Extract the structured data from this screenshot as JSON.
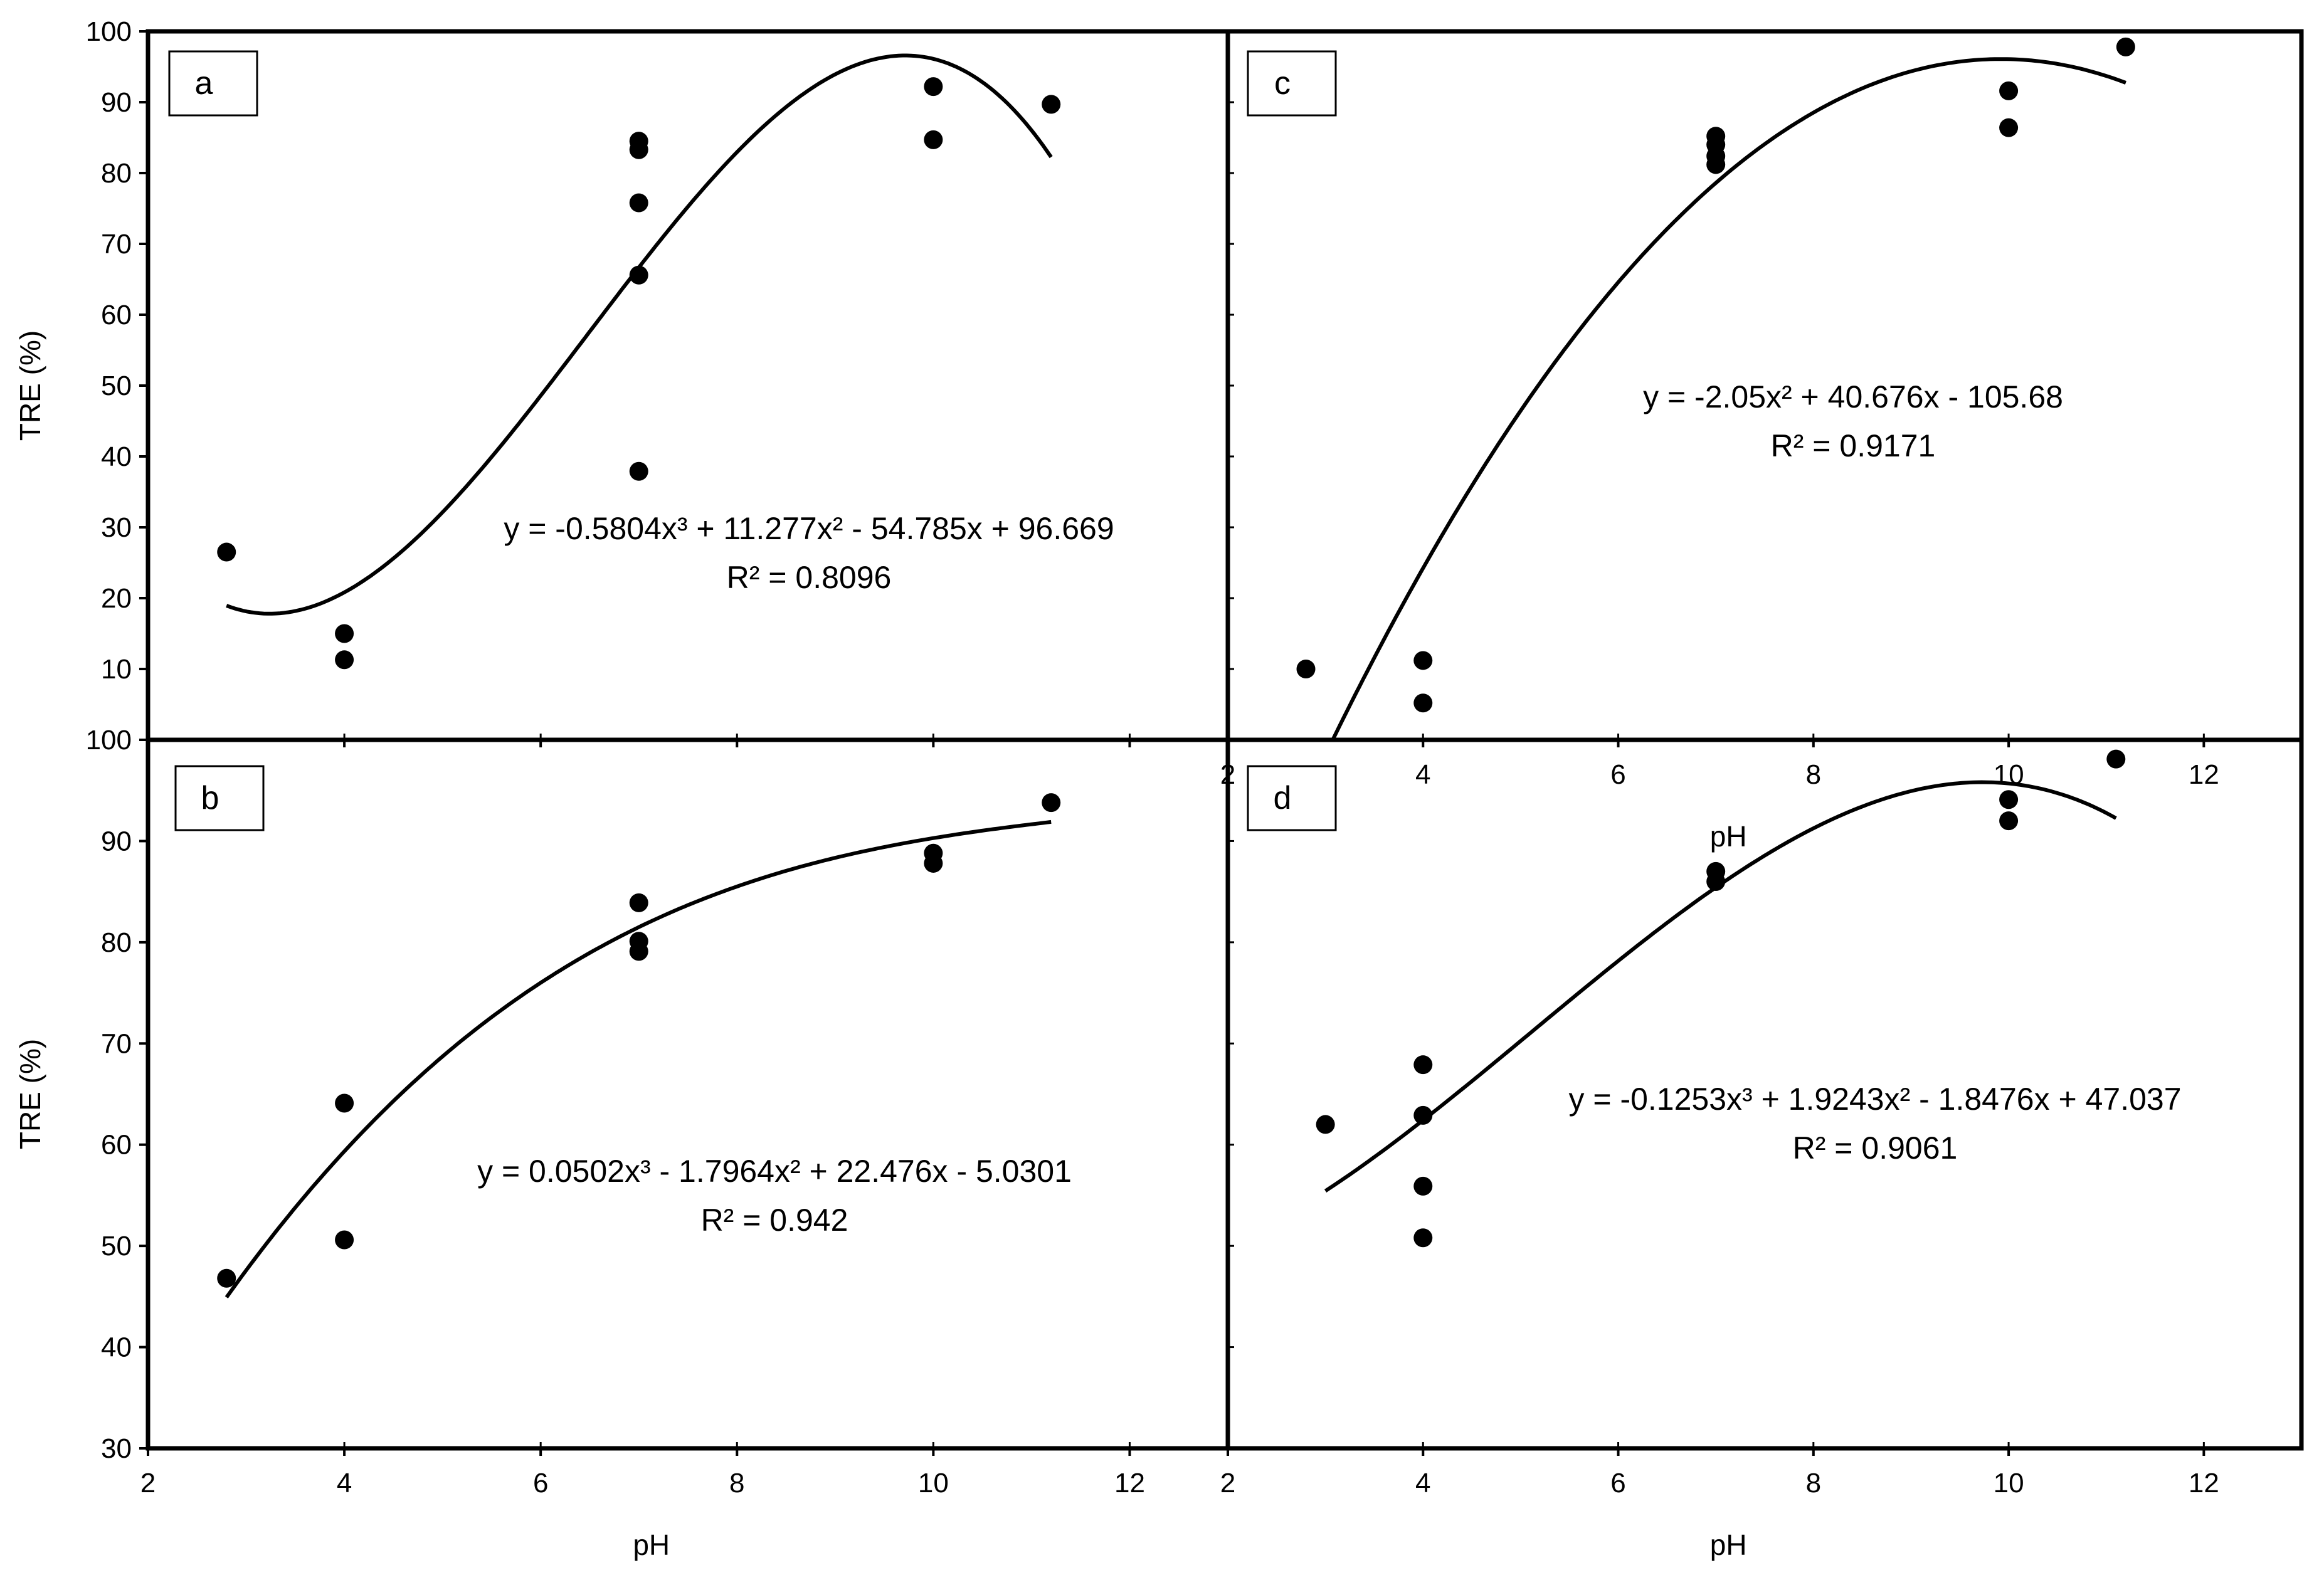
{
  "chart_data": [
    {
      "type": "scatter",
      "panel_label": "a",
      "xlabel": "",
      "ylabel": "TRE (%)",
      "xlim": [
        2,
        13
      ],
      "ylim": [
        0,
        100
      ],
      "xticks": [
        2,
        4,
        6,
        8,
        10,
        12
      ],
      "yticks": [
        10,
        20,
        30,
        40,
        50,
        60,
        70,
        80,
        90,
        100
      ],
      "points": [
        {
          "x": 2.8,
          "y": 26.5
        },
        {
          "x": 4,
          "y": 15
        },
        {
          "x": 4,
          "y": 11.3
        },
        {
          "x": 7,
          "y": 84.5
        },
        {
          "x": 7,
          "y": 83.3
        },
        {
          "x": 7,
          "y": 75.8
        },
        {
          "x": 7,
          "y": 65.6
        },
        {
          "x": 7,
          "y": 37.9
        },
        {
          "x": 10,
          "y": 92.2
        },
        {
          "x": 10,
          "y": 84.7
        },
        {
          "x": 11.2,
          "y": 89.7
        }
      ],
      "trendline": {
        "degree": 3,
        "coefficients": [
          96.669,
          -54.785,
          11.277,
          -0.5804
        ],
        "x_range": [
          2.8,
          11.2
        ]
      },
      "equation": "y = -0.5804x³ + 11.277x² - 54.785x + 96.669",
      "r_squared": "R² = 0.8096"
    },
    {
      "type": "scatter",
      "panel_label": "c",
      "xlabel": "pH",
      "ylabel": "",
      "xlim": [
        2,
        13
      ],
      "ylim": [
        0,
        100
      ],
      "xticks": [
        2,
        4,
        6,
        8,
        10,
        12
      ],
      "yticks": [],
      "points": [
        {
          "x": 2.8,
          "y": 10
        },
        {
          "x": 4,
          "y": 11.2
        },
        {
          "x": 4,
          "y": 5.2
        },
        {
          "x": 7,
          "y": 85.2
        },
        {
          "x": 7,
          "y": 84
        },
        {
          "x": 7,
          "y": 82.4
        },
        {
          "x": 7,
          "y": 81.2
        },
        {
          "x": 10,
          "y": 91.6
        },
        {
          "x": 10,
          "y": 86.4
        },
        {
          "x": 11.2,
          "y": 97.8
        }
      ],
      "trendline": {
        "degree": 2,
        "coefficients": [
          -105.68,
          40.676,
          -2.05
        ],
        "x_range": [
          2.8,
          11.2
        ]
      },
      "equation": "y = -2.05x² + 40.676x - 105.68",
      "r_squared": "R² = 0.9171"
    },
    {
      "type": "scatter",
      "panel_label": "b",
      "xlabel": "pH",
      "ylabel": "TRE (%)",
      "xlim": [
        2,
        13
      ],
      "ylim": [
        30,
        100
      ],
      "xticks": [
        2,
        4,
        6,
        8,
        10,
        12
      ],
      "yticks": [
        30,
        40,
        50,
        60,
        70,
        80,
        90,
        100
      ],
      "points": [
        {
          "x": 2.8,
          "y": 46.8
        },
        {
          "x": 4,
          "y": 64.1
        },
        {
          "x": 4,
          "y": 50.6
        },
        {
          "x": 7,
          "y": 83.9
        },
        {
          "x": 7,
          "y": 80.1
        },
        {
          "x": 7,
          "y": 79.1
        },
        {
          "x": 10,
          "y": 88.8
        },
        {
          "x": 10,
          "y": 87.8
        },
        {
          "x": 11.2,
          "y": 93.8
        }
      ],
      "trendline": {
        "degree": 3,
        "coefficients": [
          -5.0301,
          22.476,
          -1.7964,
          0.0502
        ],
        "x_range": [
          2.8,
          11.2
        ]
      },
      "equation": "y = 0.0502x³ - 1.7964x² + 22.476x - 5.0301",
      "r_squared": "R² = 0.942"
    },
    {
      "type": "scatter",
      "panel_label": "d",
      "xlabel": "pH",
      "ylabel": "",
      "xlim": [
        2,
        13
      ],
      "ylim": [
        30,
        100
      ],
      "xticks": [
        2,
        4,
        6,
        8,
        10,
        12
      ],
      "yticks": [],
      "points": [
        {
          "x": 3,
          "y": 62
        },
        {
          "x": 4,
          "y": 67.9
        },
        {
          "x": 4,
          "y": 62.9
        },
        {
          "x": 4,
          "y": 55.9
        },
        {
          "x": 4,
          "y": 50.8
        },
        {
          "x": 7,
          "y": 87
        },
        {
          "x": 7,
          "y": 86
        },
        {
          "x": 10,
          "y": 94.1
        },
        {
          "x": 10,
          "y": 92
        },
        {
          "x": 11.1,
          "y": 98.1
        }
      ],
      "trendline": {
        "degree": 3,
        "coefficients": [
          47.037,
          -1.8476,
          1.9243,
          -0.1253
        ],
        "x_range": [
          3,
          11.1
        ]
      },
      "equation": "y = -0.1253x³ + 1.9243x² - 1.8476x + 47.037",
      "r_squared": "R² = 0.9061"
    }
  ]
}
